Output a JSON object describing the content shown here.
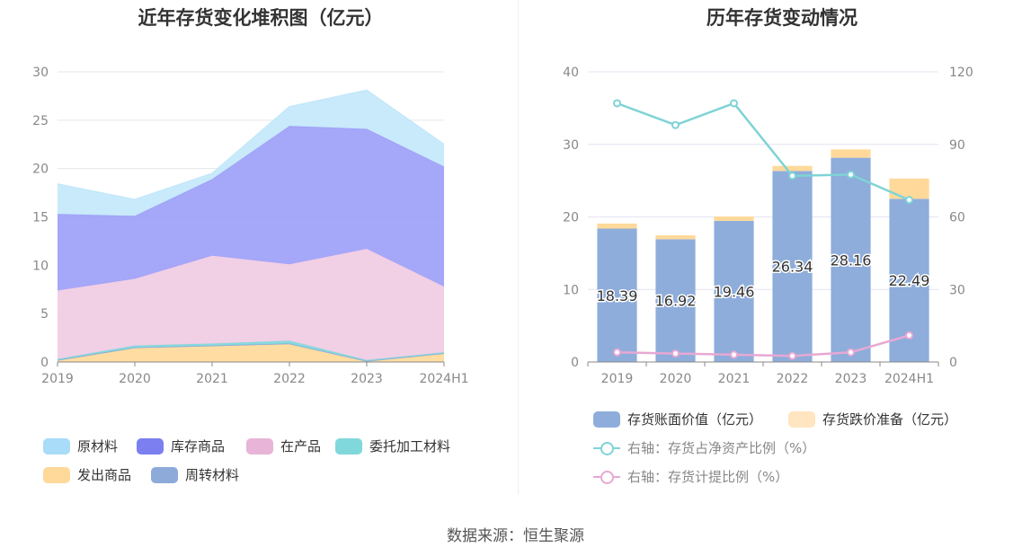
{
  "left_title": "近年存货变化堆积图（亿元）",
  "right_title": "历年存货变动情况",
  "source": "数据来源：恒生聚源",
  "chart_data": [
    {
      "type": "area",
      "stacked": true,
      "title": "近年存货变化堆积图（亿元）",
      "categories": [
        "2019",
        "2020",
        "2021",
        "2022",
        "2023",
        "2024H1"
      ],
      "y_ticks": [
        "0",
        "5",
        "10",
        "15",
        "20",
        "25",
        "30"
      ],
      "ylim": [
        0,
        30
      ],
      "series": [
        {
          "name": "发出商品",
          "color": "#ffd99a",
          "values": [
            0.2,
            1.5,
            1.7,
            1.9,
            0.1,
            0.9
          ]
        },
        {
          "name": "周转材料",
          "color": "#8eaad8",
          "values": [
            0.0,
            0.0,
            0.0,
            0.0,
            0.0,
            0.0
          ]
        },
        {
          "name": "委托加工材料",
          "color": "#80d8dc",
          "values": [
            0.1,
            0.2,
            0.2,
            0.3,
            0.1,
            0.1
          ]
        },
        {
          "name": "在产品",
          "color": "#f0cce4",
          "values": [
            7.1,
            6.9,
            9.1,
            7.9,
            11.5,
            6.8
          ]
        },
        {
          "name": "库存商品",
          "color": "#9da0f8",
          "values": [
            7.9,
            6.5,
            7.9,
            14.3,
            12.4,
            12.4
          ]
        },
        {
          "name": "原材料",
          "color": "#c4e8fa",
          "values": [
            3.1,
            1.7,
            0.6,
            2.0,
            4.0,
            2.3
          ]
        }
      ],
      "legend_order": [
        "原材料",
        "库存商品",
        "在产品",
        "委托加工材料",
        "发出商品",
        "周转材料"
      ],
      "legend_colors": {
        "原材料": "#a8dcf8",
        "库存商品": "#7b7ff0",
        "在产品": "#e8b4d8",
        "委托加工材料": "#80d8dc",
        "发出商品": "#ffd99a",
        "周转材料": "#8eaad8"
      },
      "legend_position": "bottom"
    },
    {
      "type": "bar",
      "stacked": true,
      "title": "历年存货变动情况",
      "categories": [
        "2019",
        "2020",
        "2021",
        "2022",
        "2023",
        "2024H1"
      ],
      "y_left_ticks": [
        "0",
        "10",
        "20",
        "30",
        "40"
      ],
      "y_right_ticks": [
        "0",
        "30",
        "60",
        "90",
        "120"
      ],
      "ylim_left": [
        0,
        40
      ],
      "ylim_right": [
        0,
        120
      ],
      "series": [
        {
          "name": "存货账面价值（亿元）",
          "type": "bar",
          "color": "#8eaddb",
          "values": [
            18.39,
            16.92,
            19.46,
            26.34,
            28.16,
            22.49
          ],
          "labels": [
            "18.39",
            "16.92",
            "19.46",
            "26.34",
            "28.16",
            "22.49"
          ]
        },
        {
          "name": "存货跌价准备（亿元）",
          "type": "bar",
          "color": "#ffd99a",
          "legend_color": "#ffe5c0",
          "values": [
            0.7,
            0.55,
            0.6,
            0.7,
            1.15,
            2.8
          ]
        },
        {
          "name": "右轴：存货占净资产比例（%）",
          "type": "line",
          "axis": "right",
          "color": "#7fd3d6",
          "values": [
            107,
            98,
            107,
            77,
            77.5,
            67
          ]
        },
        {
          "name": "右轴：存货计提比例（%）",
          "type": "line",
          "axis": "right",
          "color": "#e8a8d4",
          "values": [
            4,
            3.5,
            3,
            2.5,
            4,
            11
          ]
        }
      ],
      "legend_position": "bottom"
    }
  ]
}
